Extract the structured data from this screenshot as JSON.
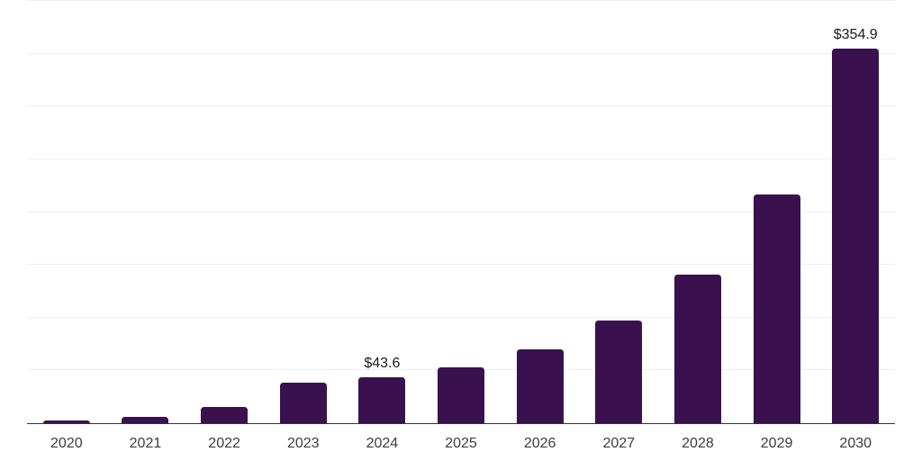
{
  "chart_data": {
    "type": "bar",
    "title": "",
    "xlabel": "",
    "ylabel": "",
    "categories": [
      "2020",
      "2021",
      "2022",
      "2023",
      "2024",
      "2025",
      "2026",
      "2027",
      "2028",
      "2029",
      "2030"
    ],
    "values": [
      2.5,
      6.2,
      15.2,
      38.7,
      43.6,
      53,
      70,
      97,
      141,
      217,
      354.9
    ],
    "bar_labels": [
      "",
      "",
      "",
      "",
      "$43.6",
      "",
      "",
      "",
      "",
      "",
      "$354.9"
    ],
    "ylim": [
      0,
      400
    ],
    "gridline_step": 50,
    "grid": "horizontal",
    "y_tick_labels_visible": false,
    "legend": "none",
    "colors": {
      "bar": "#3a114e",
      "axis_line": "#333333",
      "gridline": "#efefef",
      "tick_label": "#3d3d3d",
      "data_label": "#1a1a1a",
      "background": "#ffffff"
    }
  }
}
